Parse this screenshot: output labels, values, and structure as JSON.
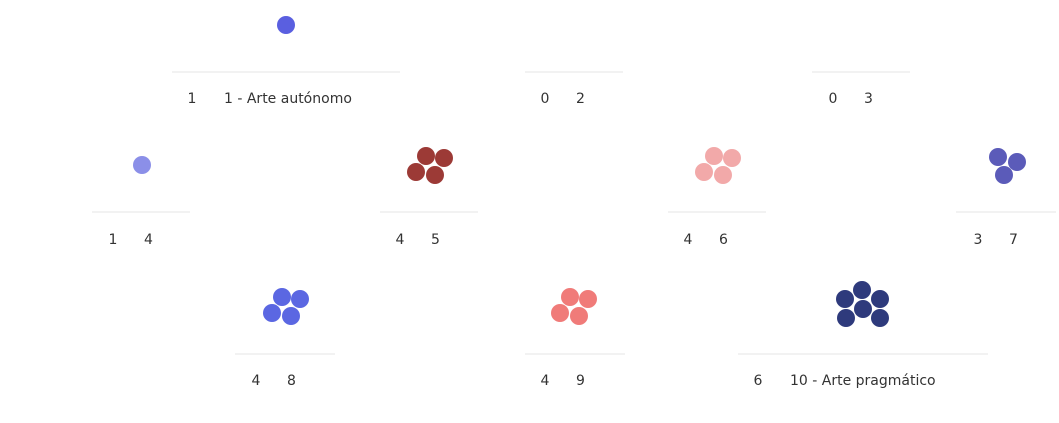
{
  "items": [
    {
      "count": 1,
      "label": "1 - Arte autónomo",
      "color": "#5a5fe0"
    },
    {
      "count": 0,
      "label": "2",
      "color": "#5a5fe0"
    },
    {
      "count": 0,
      "label": "3",
      "color": "#5a5fe0"
    },
    {
      "count": 1,
      "label": "4",
      "color": "#8b8fe8"
    },
    {
      "count": 4,
      "label": "5",
      "color": "#9c3a36"
    },
    {
      "count": 4,
      "label": "6",
      "color": "#f2a9a9"
    },
    {
      "count": 3,
      "label": "7",
      "color": "#5b5bb9"
    },
    {
      "count": 4,
      "label": "8",
      "color": "#5b67e2"
    },
    {
      "count": 4,
      "label": "9",
      "color": "#f07b79"
    },
    {
      "count": 6,
      "label": "10 - Arte pragmático",
      "color": "#2e3a7c"
    }
  ]
}
